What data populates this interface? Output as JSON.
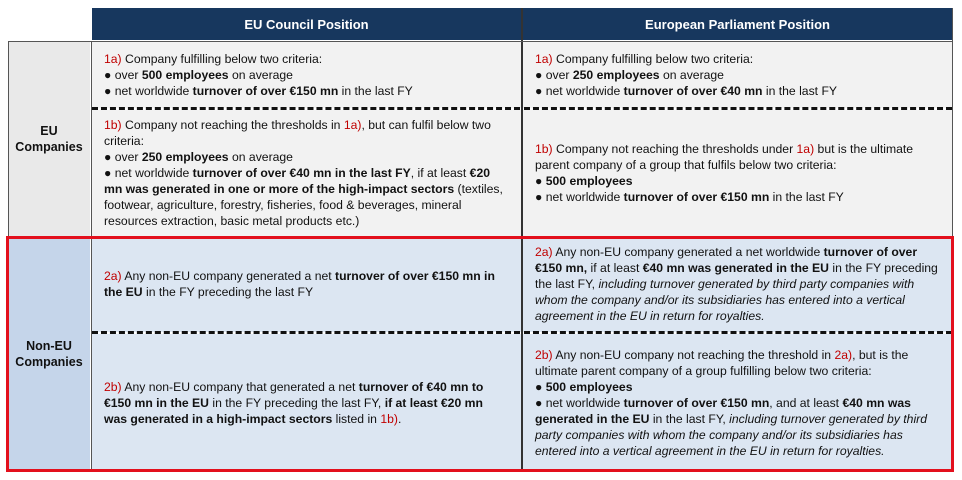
{
  "header": {
    "col1": "EU Council Position",
    "col2": "European Parliament Position"
  },
  "rows": {
    "eu_label": "EU\nCompanies",
    "noneu_label": "Non-EU\nCompanies"
  },
  "eu_council": {
    "a_tag": "1a)",
    "a_text": " Company fulfilling below two criteria:",
    "a_b1_pre": "over ",
    "a_b1_bold": "500 employees",
    "a_b1_post": " on average",
    "a_b2_pre": "net worldwide ",
    "a_b2_bold": "turnover of over €150 mn",
    "a_b2_post": " in the last FY",
    "b_tag": "1b)",
    "b_text1": " Company not reaching the thresholds in ",
    "b_ref": "1a)",
    "b_text2": ", but can fulfil below two criteria:",
    "b_b1_pre": "over ",
    "b_b1_bold": "250 employees",
    "b_b1_post": " on average",
    "b_b2_pre": "net worldwide ",
    "b_b2_bold": "turnover of over €40 mn in the last FY",
    "b_b2_mid": ", if at least ",
    "b_b2_bold2": "€20 mn was generated in one or more of the high-impact sectors",
    "b_b2_post": " (textiles, footwear, agriculture, forestry, fisheries, food & beverages, mineral resources extraction, basic metal products etc.)"
  },
  "eu_parliament": {
    "a_tag": "1a)",
    "a_text": " Company fulfilling below two criteria:",
    "a_b1_pre": "over ",
    "a_b1_bold": "250 employees",
    "a_b1_post": " on average",
    "a_b2_pre": "net worldwide ",
    "a_b2_bold": "turnover of over €40 mn",
    "a_b2_post": " in the last FY",
    "b_tag": "1b)",
    "b_text1": " Company not reaching the thresholds under ",
    "b_ref": "1a)",
    "b_text2": " but is the ultimate parent company of a group that fulfils below two criteria:",
    "b_b1_bold": "500 employees",
    "b_b2_pre": "net worldwide ",
    "b_b2_bold": "turnover of over €150 mn",
    "b_b2_post": " in the last FY"
  },
  "noneu_council": {
    "a_tag": "2a)",
    "a_text1": " Any non-EU company generated a net ",
    "a_bold": "turnover of over €150 mn in the EU",
    "a_text2": " in the FY preceding the last FY",
    "b_tag": "2b)",
    "b_text1": " Any non-EU company that generated a net ",
    "b_bold1": "turnover of €40 mn to €150 mn in the EU",
    "b_text2": " in the FY preceding the last FY, ",
    "b_bold2": "if at least €20 mn was generated in a high-impact sectors",
    "b_text3": " listed in ",
    "b_ref": "1b)",
    "b_text4": "."
  },
  "noneu_parliament": {
    "a_tag": "2a)",
    "a_text1": " Any non-EU company generated a net worldwide ",
    "a_bold1": "turnover of over €150 mn,",
    "a_text2": " if at least ",
    "a_bold2": "€40 mn was generated in the EU",
    "a_text3": " in the FY preceding the last FY, ",
    "a_ital": "including turnover generated by third party companies with whom the company and/or its subsidiaries has entered into a vertical agreement in the EU in return for royalties.",
    "b_tag": "2b)",
    "b_text1": " Any non-EU company not reaching the threshold in ",
    "b_ref": "2a)",
    "b_text2": ", but is the ultimate parent company of a group fulfilling below two criteria:",
    "b_b1_bold": "500 employees",
    "b_b2_pre": "net worldwide ",
    "b_b2_bold": "turnover of over €150 mn",
    "b_b2_mid": ", and at least ",
    "b_b2_bold2": "€40 mn was generated in the EU",
    "b_b2_mid2": " in the last FY, ",
    "b_b2_ital": "including turnover generated by third party companies with whom the company and/or its subsidiaries has entered into a vertical agreement in the EU in return for royalties."
  }
}
